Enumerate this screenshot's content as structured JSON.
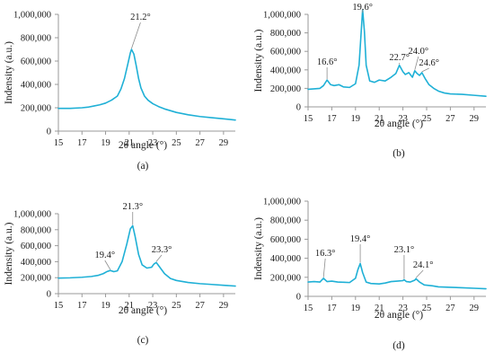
{
  "colors": {
    "series": "#1fb0d6",
    "axis": "#9a9a9a",
    "text": "#1a1a1a"
  },
  "chart_data": [
    {
      "type": "line",
      "panel_label": "(a)",
      "xlabel": "2θ angle (°)",
      "ylabel": "Indensity (a.u.)",
      "xlim": [
        15,
        30
      ],
      "ylim": [
        0,
        1000000
      ],
      "x_ticks": [
        15,
        17,
        19,
        21,
        23,
        25,
        27,
        29
      ],
      "x_tick_labels": [
        "15",
        "17",
        "19",
        "21",
        "23",
        "25",
        "27",
        "29"
      ],
      "y_ticks": [
        0,
        200000,
        400000,
        600000,
        800000,
        1000000
      ],
      "y_tick_labels": [
        "0",
        "200,000",
        "400,000",
        "600,000",
        "800,000",
        "1,000,000"
      ],
      "grid": false,
      "series": [
        {
          "x": [
            15,
            16,
            17,
            17.5,
            18,
            18.5,
            19,
            19.5,
            20,
            20.3,
            20.6,
            20.9,
            21.1,
            21.2,
            21.4,
            21.6,
            21.8,
            22,
            22.3,
            22.6,
            23,
            23.5,
            24,
            25,
            26,
            27,
            28,
            29,
            30
          ],
          "y": [
            195000,
            195000,
            200000,
            205000,
            215000,
            225000,
            240000,
            265000,
            300000,
            360000,
            450000,
            580000,
            670000,
            700000,
            660000,
            560000,
            450000,
            370000,
            300000,
            265000,
            235000,
            210000,
            190000,
            160000,
            140000,
            125000,
            115000,
            105000,
            95000
          ]
        }
      ],
      "annotations": [
        {
          "text": "21.2°",
          "x": 21.2,
          "y": 700000
        }
      ]
    },
    {
      "type": "line",
      "panel_label": "(b)",
      "xlabel": "2θ angle (°)",
      "ylabel": "Indensity (a.u.)",
      "xlim": [
        15,
        30
      ],
      "ylim": [
        0,
        1000000
      ],
      "x_ticks": [
        15,
        17,
        19,
        21,
        23,
        25,
        27,
        29
      ],
      "x_tick_labels": [
        "15",
        "17",
        "19",
        "21",
        "23",
        "25",
        "27",
        "29"
      ],
      "y_ticks": [
        0,
        200000,
        400000,
        600000,
        800000,
        1000000
      ],
      "y_tick_labels": [
        "0",
        "200,000",
        "400,000",
        "600,000",
        "800,000",
        "1,000,000"
      ],
      "grid": false,
      "series": [
        {
          "x": [
            15,
            16,
            16.3,
            16.6,
            16.9,
            17.2,
            17.6,
            18,
            18.5,
            19,
            19.3,
            19.5,
            19.6,
            19.75,
            19.9,
            20.2,
            20.6,
            21,
            21.5,
            22,
            22.4,
            22.7,
            23,
            23.2,
            23.5,
            23.8,
            24,
            24.2,
            24.4,
            24.6,
            24.9,
            25.2,
            25.6,
            26,
            26.5,
            27,
            28,
            29,
            30
          ],
          "y": [
            190000,
            200000,
            230000,
            290000,
            240000,
            230000,
            240000,
            215000,
            210000,
            250000,
            450000,
            850000,
            1050000,
            820000,
            450000,
            280000,
            265000,
            290000,
            280000,
            320000,
            360000,
            450000,
            380000,
            350000,
            370000,
            320000,
            390000,
            360000,
            340000,
            370000,
            300000,
            240000,
            200000,
            170000,
            150000,
            140000,
            135000,
            125000,
            115000
          ]
        }
      ],
      "annotations": [
        {
          "text": "16.6°",
          "x": 16.6,
          "y": 290000
        },
        {
          "text": "19.6°",
          "x": 19.6,
          "y": 1050000
        },
        {
          "text": "22.7°",
          "x": 22.7,
          "y": 450000
        },
        {
          "text": "24.0°",
          "x": 24.0,
          "y": 390000
        },
        {
          "text": "24.6°",
          "x": 24.6,
          "y": 370000
        }
      ]
    },
    {
      "type": "line",
      "panel_label": "(c)",
      "xlabel": "2θ angle (°)",
      "ylabel": "Indensity (a.u.)",
      "xlim": [
        15,
        30
      ],
      "ylim": [
        0,
        1000000
      ],
      "x_ticks": [
        15,
        17,
        19,
        21,
        23,
        25,
        27,
        29
      ],
      "x_tick_labels": [
        "15",
        "17",
        "19",
        "21",
        "23",
        "25",
        "27",
        "29"
      ],
      "y_ticks": [
        0,
        200000,
        400000,
        600000,
        800000,
        1000000
      ],
      "y_tick_labels": [
        "0",
        "200,000",
        "400,000",
        "600,000",
        "800,000",
        "1,000,000"
      ],
      "grid": false,
      "series": [
        {
          "x": [
            15,
            16,
            17,
            17.8,
            18.4,
            18.8,
            19.1,
            19.4,
            19.7,
            20,
            20.4,
            20.8,
            21.1,
            21.3,
            21.5,
            21.8,
            22.1,
            22.5,
            22.9,
            23.1,
            23.3,
            23.6,
            24,
            24.5,
            25,
            26,
            27,
            28,
            29,
            30
          ],
          "y": [
            195000,
            198000,
            205000,
            215000,
            230000,
            250000,
            275000,
            290000,
            275000,
            285000,
            400000,
            620000,
            810000,
            850000,
            720000,
            490000,
            360000,
            320000,
            330000,
            370000,
            390000,
            330000,
            250000,
            190000,
            165000,
            140000,
            125000,
            115000,
            105000,
            95000
          ]
        }
      ],
      "annotations": [
        {
          "text": "19.4°",
          "x": 19.4,
          "y": 290000
        },
        {
          "text": "21.3°",
          "x": 21.3,
          "y": 850000
        },
        {
          "text": "23.3°",
          "x": 23.3,
          "y": 390000
        }
      ]
    },
    {
      "type": "line",
      "panel_label": "(d)",
      "xlabel": "2θ angle (°)",
      "ylabel": "Indensity (a.u.)",
      "xlim": [
        15,
        30
      ],
      "ylim": [
        0,
        1000000
      ],
      "x_ticks": [
        15,
        17,
        19,
        21,
        23,
        25,
        27,
        29
      ],
      "x_tick_labels": [
        "15",
        "17",
        "19",
        "21",
        "23",
        "25",
        "27",
        "29"
      ],
      "y_ticks": [
        0,
        200000,
        400000,
        600000,
        800000,
        1000000
      ],
      "y_tick_labels": [
        "0",
        "200,000",
        "400,000",
        "600,000",
        "800,000",
        "1,000,000"
      ],
      "grid": false,
      "series": [
        {
          "x": [
            15,
            15.5,
            16,
            16.3,
            16.6,
            17,
            17.5,
            18,
            18.5,
            19,
            19.2,
            19.4,
            19.6,
            19.9,
            20.3,
            21,
            21.5,
            22,
            22.5,
            23,
            23.1,
            23.3,
            23.6,
            24,
            24.1,
            24.4,
            24.8,
            25.5,
            26,
            27,
            28,
            29,
            30
          ],
          "y": [
            150000,
            155000,
            150000,
            190000,
            155000,
            160000,
            150000,
            148000,
            145000,
            190000,
            280000,
            345000,
            250000,
            150000,
            135000,
            130000,
            140000,
            155000,
            160000,
            165000,
            175000,
            155000,
            150000,
            170000,
            185000,
            150000,
            120000,
            110000,
            100000,
            95000,
            90000,
            85000,
            80000
          ]
        }
      ],
      "annotations": [
        {
          "text": "16.3°",
          "x": 16.3,
          "y": 190000
        },
        {
          "text": "19.4°",
          "x": 19.4,
          "y": 345000
        },
        {
          "text": "23.1°",
          "x": 23.1,
          "y": 175000
        },
        {
          "text": "24.1°",
          "x": 24.1,
          "y": 185000
        }
      ]
    }
  ]
}
